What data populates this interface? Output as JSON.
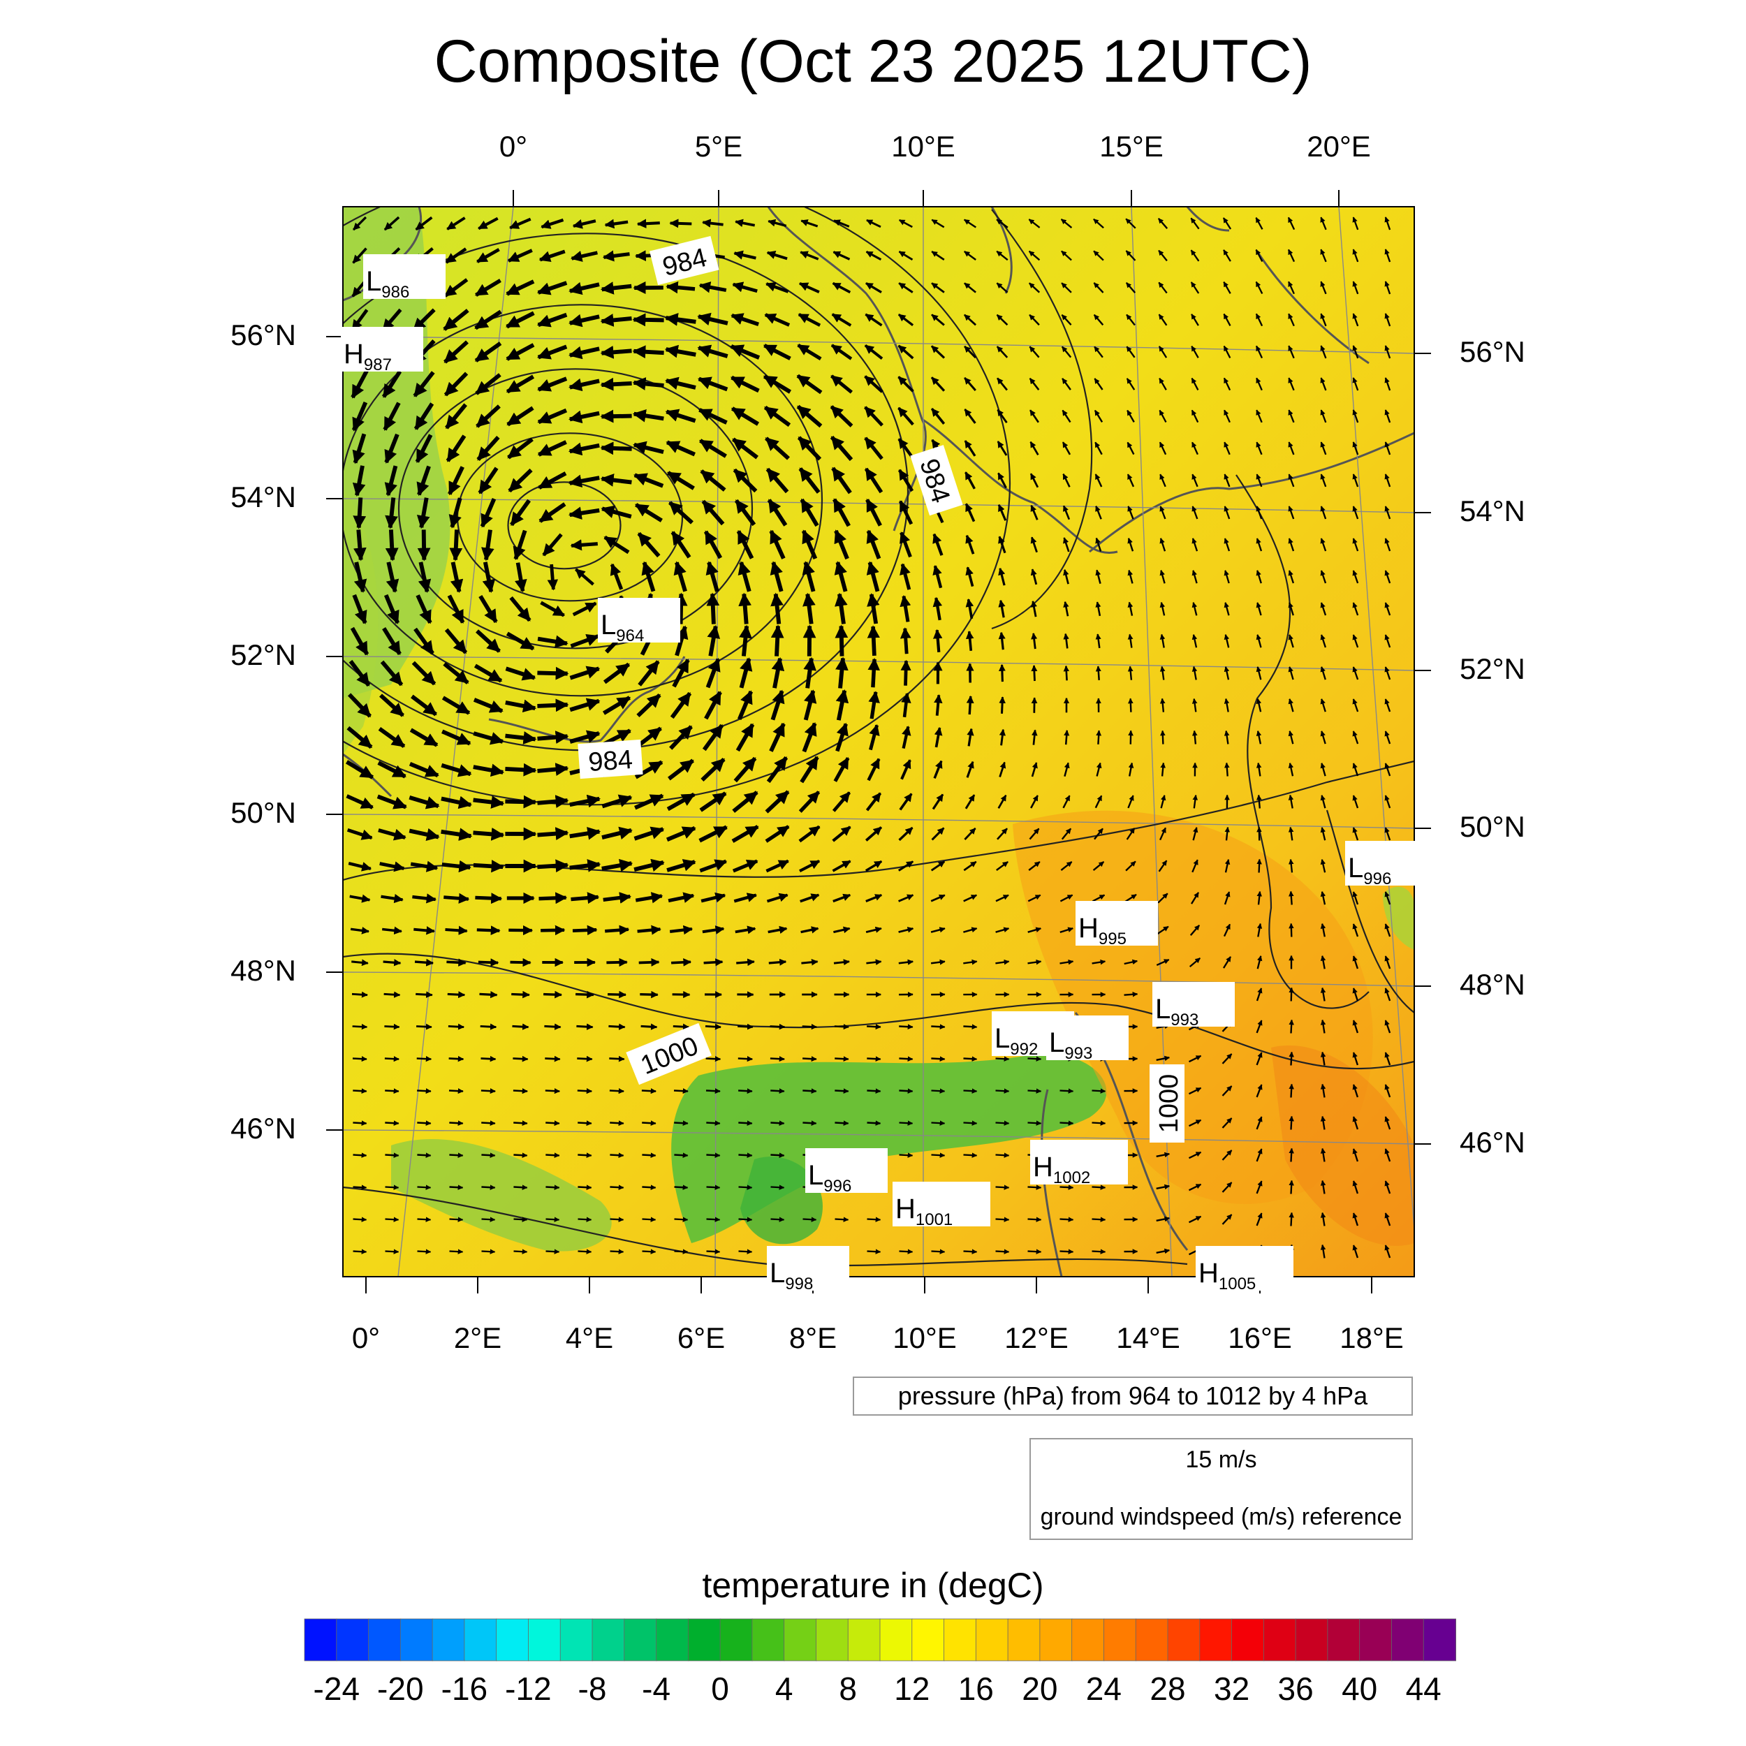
{
  "title": "Composite (Oct 23 2025 12UTC)",
  "axes": {
    "top_lon_labels": [
      "0°",
      "5°E",
      "10°E",
      "15°E",
      "20°E"
    ],
    "bottom_lon_labels": [
      "0°",
      "2°E",
      "4°E",
      "6°E",
      "8°E",
      "10°E",
      "12°E",
      "14°E",
      "16°E",
      "18°E"
    ],
    "left_lat_labels": [
      "56°N",
      "54°N",
      "52°N",
      "50°N",
      "48°N",
      "46°N"
    ],
    "right_lat_labels": [
      "56°N",
      "54°N",
      "52°N",
      "50°N",
      "48°N",
      "46°N"
    ]
  },
  "pressure_info": "pressure (hPa) from 964 to 1012 by 4 hPa",
  "vector_reference": {
    "speed": "15 m/s",
    "label": "ground windspeed (m/s) reference"
  },
  "colorbar": {
    "title": "temperature in (degC)",
    "ticks": [
      "-24",
      "-20",
      "-16",
      "-12",
      "-8",
      "-4",
      "0",
      "4",
      "8",
      "12",
      "16",
      "20",
      "24",
      "28",
      "32",
      "36",
      "40",
      "44"
    ],
    "min": -26,
    "max": 46,
    "step": 2
  },
  "contour_labels": [
    "984",
    "984",
    "984",
    "1000",
    "1000"
  ],
  "pressure_centers": [
    {
      "type": "L",
      "value": "986"
    },
    {
      "type": "H",
      "value": "987"
    },
    {
      "type": "L",
      "value": "964"
    },
    {
      "type": "L",
      "value": "996"
    },
    {
      "type": "H",
      "value": "995"
    },
    {
      "type": "L",
      "value": "993"
    },
    {
      "type": "L",
      "value": "992"
    },
    {
      "type": "L",
      "value": "993"
    },
    {
      "type": "L",
      "value": "996"
    },
    {
      "type": "H",
      "value": "1002"
    },
    {
      "type": "H",
      "value": "1001"
    },
    {
      "type": "L",
      "value": "998"
    },
    {
      "type": "H",
      "value": "1005"
    }
  ],
  "cyclone": {
    "center_lon": 3.8,
    "center_lat": 52.9
  }
}
